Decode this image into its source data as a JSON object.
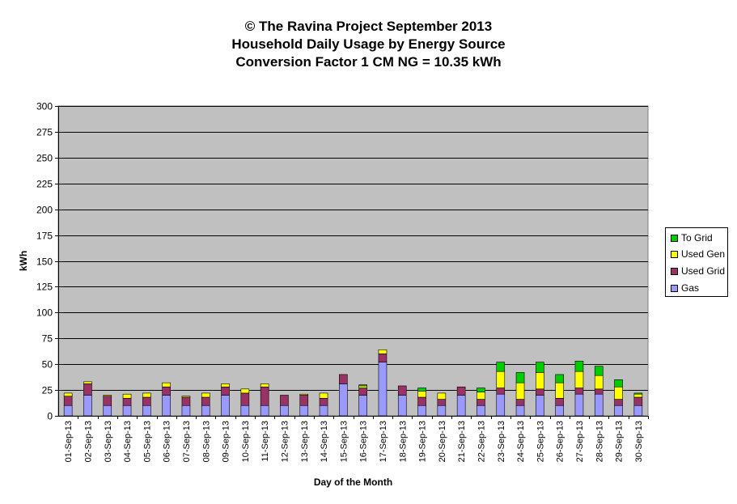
{
  "chart_data": {
    "type": "bar",
    "stacked": true,
    "title_lines": [
      "© The Ravina Project September 2013",
      "Household Daily Usage by Energy Source",
      "Conversion Factor 1 CM NG = 10.35 kWh"
    ],
    "xlabel": "Day of the Month",
    "ylabel": "kWh",
    "ylim": [
      0,
      300
    ],
    "yticks": [
      0,
      25,
      50,
      75,
      100,
      125,
      150,
      175,
      200,
      225,
      250,
      275,
      300
    ],
    "grid": true,
    "legend_position": "right",
    "plot_background": "#c0c0c0",
    "categories": [
      "01-Sep-13",
      "02-Sep-13",
      "03-Sep-13",
      "04-Sep-13",
      "05-Sep-13",
      "06-Sep-13",
      "07-Sep-13",
      "08-Sep-13",
      "09-Sep-13",
      "10-Sep-13",
      "11-Sep-13",
      "12-Sep-13",
      "13-Sep-13",
      "14-Sep-13",
      "15-Sep-13",
      "16-Sep-13",
      "17-Sep-13",
      "18-Sep-13",
      "19-Sep-13",
      "20-Sep-13",
      "21-Sep-13",
      "22-Sep-13",
      "23-Sep-13",
      "24-Sep-13",
      "25-Sep-13",
      "26-Sep-13",
      "27-Sep-13",
      "28-Sep-13",
      "29-Sep-13",
      "30-Sep-13"
    ],
    "series": [
      {
        "name": "Gas",
        "color": "#9999ff",
        "values": [
          10,
          20,
          10,
          10,
          10,
          20,
          10,
          10,
          20,
          10,
          10,
          10,
          10,
          10,
          31,
          20,
          52,
          20,
          10,
          10,
          20,
          10,
          21,
          10,
          20,
          10,
          21,
          21,
          10,
          10
        ]
      },
      {
        "name": "Used Grid",
        "color": "#993366",
        "values": [
          9,
          11,
          9,
          7,
          8,
          8,
          8,
          8,
          8,
          12,
          18,
          10,
          10,
          7,
          9,
          7,
          8,
          9,
          8,
          6,
          8,
          6,
          6,
          6,
          6,
          7,
          6,
          5,
          6,
          8
        ]
      },
      {
        "name": "Used Gen",
        "color": "#ffff00",
        "values": [
          3,
          2,
          1,
          4,
          4,
          4,
          1,
          4,
          3,
          4,
          3,
          0,
          1,
          5,
          0,
          2,
          4,
          0,
          6,
          6,
          0,
          7,
          16,
          16,
          16,
          15,
          16,
          13,
          12,
          3
        ]
      },
      {
        "name": "To Grid",
        "color": "#00cc00",
        "values": [
          0,
          0,
          0,
          0,
          0,
          0,
          0,
          0,
          0,
          0,
          0,
          0,
          0,
          0,
          0,
          1,
          0,
          0,
          3,
          0,
          0,
          4,
          9,
          10,
          10,
          8,
          10,
          9,
          7,
          1
        ]
      }
    ]
  },
  "legend": {
    "items": [
      {
        "label": "To Grid",
        "color": "#00cc00"
      },
      {
        "label": "Used Gen",
        "color": "#ffff00"
      },
      {
        "label": "Used Grid",
        "color": "#993366"
      },
      {
        "label": "Gas",
        "color": "#9999ff"
      }
    ]
  }
}
